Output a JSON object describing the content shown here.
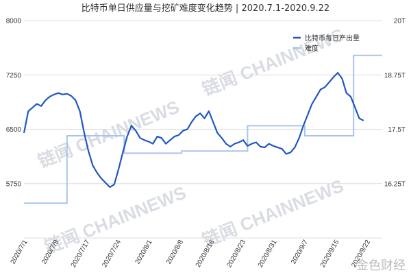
{
  "chart_data": {
    "type": "line",
    "title": "比特币单日供应量与挖矿难度变化趋势 | 2020.7.1-2020.9.22",
    "watermark": "链闻 CHAINNEWS",
    "corner_mark": "金色财经",
    "y_left": {
      "lim": [
        5000,
        8000
      ],
      "ticks": [
        "8000",
        "7250",
        "6500",
        "5750"
      ]
    },
    "y_right": {
      "lim": [
        15,
        20
      ],
      "ticks": [
        "20T",
        "18.75T",
        "17.5T",
        "16.25T"
      ]
    },
    "x_ticks": [
      "2020/7/1",
      "2020/7/9",
      "2020/7/17",
      "2020/7/24",
      "2020/8/1",
      "2020/8/8",
      "2020/8/16",
      "2020/8/23",
      "2020/8/31",
      "2020/9/7",
      "2020/9/15",
      "2020/9/22"
    ],
    "legend": {
      "position": "top-right"
    },
    "colors": {
      "supply": "#1f56c4",
      "difficulty": "#a9c4ec",
      "grid": "#dddddd"
    },
    "series": [
      {
        "name": "比特币每日产出量",
        "axis": "left",
        "points": [
          [
            0,
            6450
          ],
          [
            1,
            6750
          ],
          [
            2,
            6800
          ],
          [
            3,
            6850
          ],
          [
            4,
            6820
          ],
          [
            5,
            6900
          ],
          [
            6,
            6950
          ],
          [
            7,
            6980
          ],
          [
            8,
            7000
          ],
          [
            9,
            6980
          ],
          [
            10,
            6990
          ],
          [
            11,
            6960
          ],
          [
            12,
            6900
          ],
          [
            13,
            6750
          ],
          [
            14,
            6450
          ],
          [
            15,
            6200
          ],
          [
            16,
            6000
          ],
          [
            17,
            5900
          ],
          [
            18,
            5820
          ],
          [
            19,
            5760
          ],
          [
            20,
            5700
          ],
          [
            21,
            5740
          ],
          [
            22,
            5950
          ],
          [
            23,
            6180
          ],
          [
            24,
            6400
          ],
          [
            25,
            6550
          ],
          [
            26,
            6480
          ],
          [
            27,
            6380
          ],
          [
            28,
            6350
          ],
          [
            29,
            6330
          ],
          [
            30,
            6300
          ],
          [
            31,
            6400
          ],
          [
            32,
            6380
          ],
          [
            33,
            6300
          ],
          [
            34,
            6350
          ],
          [
            35,
            6400
          ],
          [
            36,
            6420
          ],
          [
            37,
            6480
          ],
          [
            38,
            6500
          ],
          [
            39,
            6600
          ],
          [
            40,
            6680
          ],
          [
            41,
            6720
          ],
          [
            42,
            6650
          ],
          [
            43,
            6750
          ],
          [
            44,
            6600
          ],
          [
            45,
            6450
          ],
          [
            46,
            6380
          ],
          [
            47,
            6300
          ],
          [
            48,
            6260
          ],
          [
            49,
            6300
          ],
          [
            50,
            6320
          ],
          [
            51,
            6350
          ],
          [
            52,
            6270
          ],
          [
            53,
            6300
          ],
          [
            54,
            6320
          ],
          [
            55,
            6260
          ],
          [
            56,
            6250
          ],
          [
            57,
            6300
          ],
          [
            58,
            6270
          ],
          [
            59,
            6250
          ],
          [
            60,
            6230
          ],
          [
            61,
            6160
          ],
          [
            62,
            6180
          ],
          [
            63,
            6250
          ],
          [
            64,
            6380
          ],
          [
            65,
            6550
          ],
          [
            66,
            6700
          ],
          [
            67,
            6850
          ],
          [
            68,
            6950
          ],
          [
            69,
            7050
          ],
          [
            70,
            7080
          ],
          [
            71,
            7150
          ],
          [
            72,
            7220
          ],
          [
            73,
            7280
          ],
          [
            74,
            7200
          ],
          [
            75,
            7000
          ],
          [
            76,
            6950
          ],
          [
            77,
            6800
          ],
          [
            78,
            6650
          ],
          [
            79,
            6620
          ]
        ]
      },
      {
        "name": "难度",
        "axis": "right",
        "points": [
          [
            0,
            15.8
          ],
          [
            15,
            15.8
          ],
          [
            15,
            17.35
          ],
          [
            35,
            17.35
          ],
          [
            35,
            16.95
          ],
          [
            55,
            16.95
          ],
          [
            55,
            17.0
          ],
          [
            78,
            17.0
          ],
          [
            78,
            17.58
          ],
          [
            98,
            17.58
          ],
          [
            98,
            17.35
          ],
          [
            115,
            17.35
          ],
          [
            115,
            19.2
          ],
          [
            125,
            19.2
          ]
        ]
      }
    ]
  }
}
